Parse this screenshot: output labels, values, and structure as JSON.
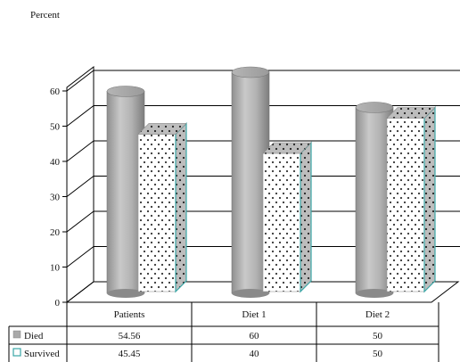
{
  "chart_data": {
    "type": "bar",
    "ylabel": "Percent",
    "ylim": [
      0,
      60
    ],
    "yticks": [
      "0",
      "10",
      "20",
      "30",
      "40",
      "50",
      "60"
    ],
    "categories": [
      "Patients",
      "Diet 1",
      "Diet 2"
    ],
    "series": [
      {
        "name": "Died",
        "values": [
          54.56,
          60,
          50
        ],
        "color": "#a9a9a9",
        "style": "cylinder"
      },
      {
        "name": "Survived",
        "values": [
          45.45,
          40,
          50
        ],
        "color": "#ffffff",
        "edge": "#3aa6a6",
        "style": "dotted-box"
      }
    ],
    "table": {
      "rows": [
        {
          "label": "Died",
          "cells": [
            "54.56",
            "60",
            "50"
          ]
        },
        {
          "label": "Survived",
          "cells": [
            "45.45",
            "40",
            "50"
          ]
        }
      ]
    },
    "grid": true,
    "legend": "data-table"
  }
}
